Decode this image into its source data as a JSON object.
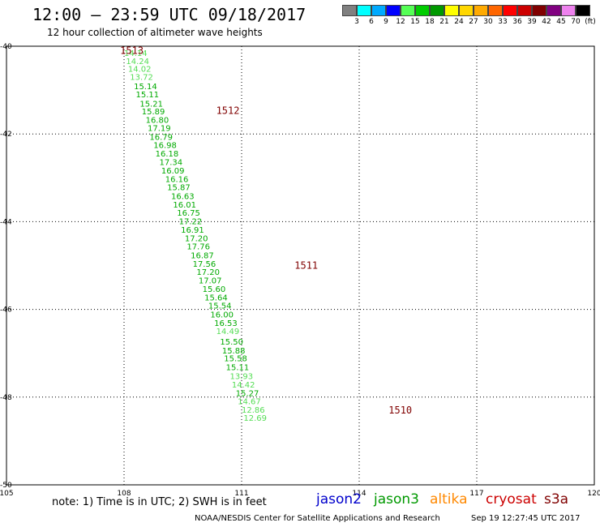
{
  "header": {
    "title": "12:00 – 23:59 UTC 09/18/2017",
    "subtitle": "12 hour collection of altimeter wave heights"
  },
  "colorbar": {
    "colors": [
      "#808080",
      "#00ffff",
      "#00aaff",
      "#0000ff",
      "#55ff55",
      "#00cc00",
      "#009900",
      "#ffff00",
      "#ffd700",
      "#ffaa00",
      "#ff6600",
      "#ff0000",
      "#cc0000",
      "#800000",
      "#800080",
      "#ee82ee",
      "#000000"
    ],
    "labels": [
      "3",
      "6",
      "9",
      "12",
      "15",
      "18",
      "21",
      "24",
      "27",
      "30",
      "33",
      "36",
      "39",
      "42",
      "45",
      "70",
      "(ft)"
    ]
  },
  "map": {
    "lon_ticks": [
      "105",
      "108",
      "111",
      "114",
      "117",
      "120"
    ],
    "lat_ticks": [
      "-40",
      "-42",
      "-44",
      "-46",
      "-48",
      "-50"
    ],
    "lon_range": [
      105,
      120
    ],
    "lat_range": [
      -50,
      -40
    ]
  },
  "chart_data": {
    "type": "scatter",
    "xlabel": "",
    "ylabel": "",
    "track_labels": [
      {
        "text": "1513",
        "lon": 107.9,
        "lat": -40.08
      },
      {
        "text": "1512",
        "lon": 110.35,
        "lat": -41.45
      },
      {
        "text": "1511",
        "lon": 112.35,
        "lat": -44.98
      },
      {
        "text": "1510",
        "lon": 114.75,
        "lat": -48.28
      }
    ],
    "points": [
      {
        "lon": 108.0,
        "lat": -40.15,
        "swh": "14.14"
      },
      {
        "lon": 108.05,
        "lat": -40.33,
        "swh": "14.24"
      },
      {
        "lon": 108.1,
        "lat": -40.51,
        "swh": "14.02"
      },
      {
        "lon": 108.15,
        "lat": -40.69,
        "swh": "13.72"
      },
      {
        "lon": 108.25,
        "lat": -40.91,
        "swh": "15.14"
      },
      {
        "lon": 108.3,
        "lat": -41.09,
        "swh": "15.11"
      },
      {
        "lon": 108.4,
        "lat": -41.3,
        "swh": "15.21"
      },
      {
        "lon": 108.45,
        "lat": -41.48,
        "swh": "15.89"
      },
      {
        "lon": 108.55,
        "lat": -41.67,
        "swh": "16.80"
      },
      {
        "lon": 108.6,
        "lat": -41.86,
        "swh": "17.19"
      },
      {
        "lon": 108.65,
        "lat": -42.06,
        "swh": "16.79"
      },
      {
        "lon": 108.75,
        "lat": -42.25,
        "swh": "16.98"
      },
      {
        "lon": 108.8,
        "lat": -42.44,
        "swh": "16.18"
      },
      {
        "lon": 108.9,
        "lat": -42.63,
        "swh": "17.34"
      },
      {
        "lon": 108.95,
        "lat": -42.83,
        "swh": "16.09"
      },
      {
        "lon": 109.05,
        "lat": -43.02,
        "swh": "16.16"
      },
      {
        "lon": 109.1,
        "lat": -43.21,
        "swh": "15.87"
      },
      {
        "lon": 109.2,
        "lat": -43.41,
        "swh": "16.63"
      },
      {
        "lon": 109.25,
        "lat": -43.6,
        "swh": "16.01"
      },
      {
        "lon": 109.35,
        "lat": -43.79,
        "swh": "16.75"
      },
      {
        "lon": 109.4,
        "lat": -43.98,
        "swh": "17.22"
      },
      {
        "lon": 109.45,
        "lat": -44.18,
        "swh": "16.91"
      },
      {
        "lon": 109.55,
        "lat": -44.37,
        "swh": "17.20"
      },
      {
        "lon": 109.6,
        "lat": -44.56,
        "swh": "17.76"
      },
      {
        "lon": 109.7,
        "lat": -44.76,
        "swh": "16.87"
      },
      {
        "lon": 109.75,
        "lat": -44.95,
        "swh": "17.56"
      },
      {
        "lon": 109.85,
        "lat": -45.14,
        "swh": "17.20"
      },
      {
        "lon": 109.9,
        "lat": -45.33,
        "swh": "17.07"
      },
      {
        "lon": 110.0,
        "lat": -45.53,
        "swh": "15.60"
      },
      {
        "lon": 110.05,
        "lat": -45.72,
        "swh": "15.64"
      },
      {
        "lon": 110.15,
        "lat": -45.91,
        "swh": "15.54"
      },
      {
        "lon": 110.2,
        "lat": -46.11,
        "swh": "16.00"
      },
      {
        "lon": 110.3,
        "lat": -46.3,
        "swh": "16.53"
      },
      {
        "lon": 110.35,
        "lat": -46.49,
        "swh": "14.49"
      },
      {
        "lon": 110.45,
        "lat": -46.73,
        "swh": "15.50"
      },
      {
        "lon": 110.5,
        "lat": -46.93,
        "swh": "15.88"
      },
      {
        "lon": 110.55,
        "lat": -47.11,
        "swh": "15.58"
      },
      {
        "lon": 110.6,
        "lat": -47.31,
        "swh": "15.11"
      },
      {
        "lon": 110.7,
        "lat": -47.51,
        "swh": "13.93"
      },
      {
        "lon": 110.75,
        "lat": -47.71,
        "swh": "14.42"
      },
      {
        "lon": 110.85,
        "lat": -47.9,
        "swh": "15.27"
      },
      {
        "lon": 110.9,
        "lat": -48.09,
        "swh": "14.67"
      },
      {
        "lon": 111.0,
        "lat": -48.28,
        "swh": "12.86"
      },
      {
        "lon": 111.05,
        "lat": -48.47,
        "swh": "12.69"
      }
    ]
  },
  "footer": {
    "note": "note:  1) Time is in UTC;  2) SWH is in feet",
    "legend": [
      {
        "name": "jason2",
        "color": "#0000cc"
      },
      {
        "name": "jason3",
        "color": "#009900"
      },
      {
        "name": "altika",
        "color": "#ff8800"
      },
      {
        "name": "cryosat",
        "color": "#cc0000"
      },
      {
        "name": "s3a",
        "color": "#800000"
      }
    ],
    "credit": "NOAA/NESDIS Center for Satellite Applications and Research",
    "timestamp": "Sep 19 12:27:45 UTC 2017"
  }
}
